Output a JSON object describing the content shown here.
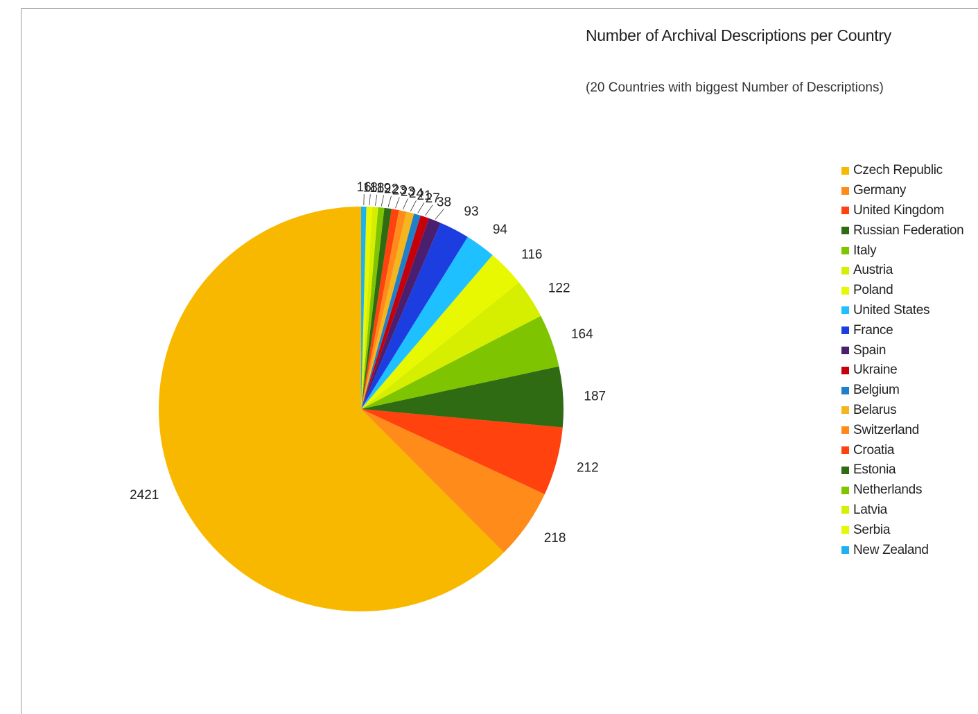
{
  "chart_data": {
    "type": "pie",
    "title": "Number of Archival Descriptions per Country",
    "subtitle": "(20 Countries with biggest Number of Descriptions)",
    "legend_position": "right",
    "slices": [
      {
        "label": "Czech Republic",
        "value": 2421,
        "color": "#f9b800"
      },
      {
        "label": "Germany",
        "value": 218,
        "color": "#ff8c1a"
      },
      {
        "label": "United Kingdom",
        "value": 212,
        "color": "#ff420e"
      },
      {
        "label": "Russian Federation",
        "value": 187,
        "color": "#2e6b12"
      },
      {
        "label": "Italy",
        "value": 164,
        "color": "#7ec400"
      },
      {
        "label": "Austria",
        "value": 122,
        "color": "#d6ef00"
      },
      {
        "label": "Poland",
        "value": 116,
        "color": "#e8f800"
      },
      {
        "label": "United States",
        "value": 94,
        "color": "#1fc0ff"
      },
      {
        "label": "France",
        "value": 93,
        "color": "#1c3ee0"
      },
      {
        "label": "Spain",
        "value": 38,
        "color": "#4b1f6f"
      },
      {
        "label": "Ukraine",
        "value": 27,
        "color": "#c5000b"
      },
      {
        "label": "Belgium",
        "value": 21,
        "color": "#1f7fc9"
      },
      {
        "label": "Belarus",
        "value": 24,
        "color": "#f3b61f"
      },
      {
        "label": "Switzerland",
        "value": 23,
        "color": "#ff8c1a"
      },
      {
        "label": "Croatia",
        "value": 23,
        "color": "#ff420e"
      },
      {
        "label": "Estonia",
        "value": 22,
        "color": "#2e6b12"
      },
      {
        "label": "Netherlands",
        "value": 19,
        "color": "#7ec400"
      },
      {
        "label": "Latvia",
        "value": 18,
        "color": "#d6ef00"
      },
      {
        "label": "Serbia",
        "value": 18,
        "color": "#e8f800"
      },
      {
        "label": "New Zealand",
        "value": 16,
        "color": "#1fb0ef"
      }
    ]
  }
}
